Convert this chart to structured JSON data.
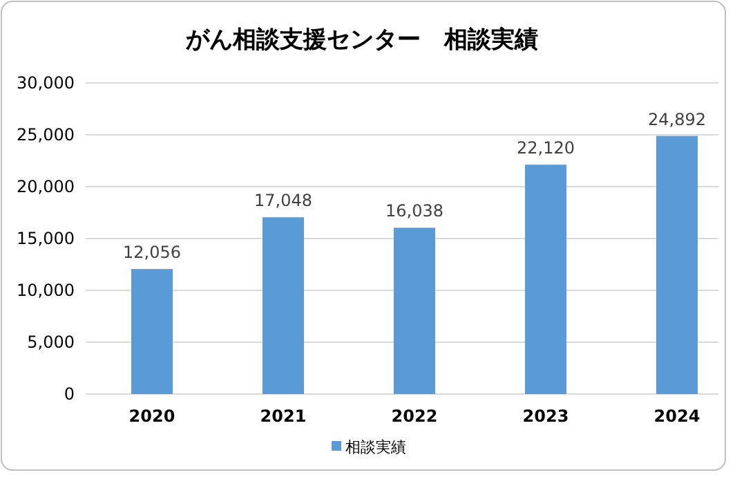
{
  "chart_data": {
    "type": "bar",
    "title": "がん相談支援センター　相談実績",
    "categories": [
      "2020",
      "2021",
      "2022",
      "2023",
      "2024"
    ],
    "series": [
      {
        "name": "相談実績",
        "color": "#5b9bd5",
        "values": [
          12056,
          17048,
          16038,
          22120,
          24892
        ],
        "value_labels": [
          "12,056",
          "17,048",
          "16,038",
          "22,120",
          "24,892"
        ]
      }
    ],
    "ylim": [
      0,
      30000
    ],
    "yticks": [
      {
        "value": 0,
        "label": "0"
      },
      {
        "value": 5000,
        "label": "5,000"
      },
      {
        "value": 10000,
        "label": "10,000"
      },
      {
        "value": 15000,
        "label": "15,000"
      },
      {
        "value": 20000,
        "label": "20,000"
      },
      {
        "value": 25000,
        "label": "25,000"
      },
      {
        "value": 30000,
        "label": "30,000"
      }
    ],
    "grid": "y",
    "legend": "bottom"
  }
}
